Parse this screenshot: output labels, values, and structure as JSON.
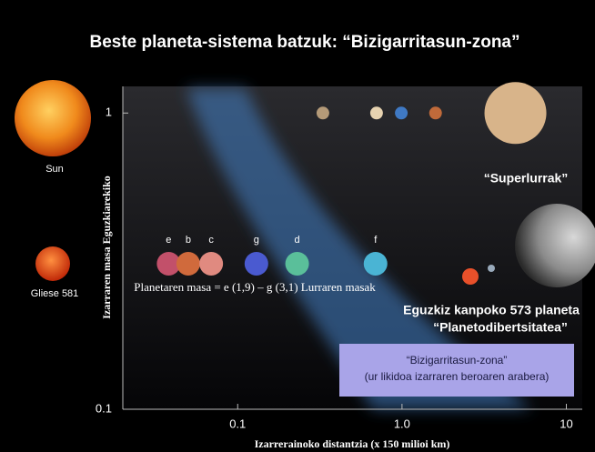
{
  "chart_data": {
    "type": "scatter",
    "title": "Beste planeta-sistema batzuk: “Bizigarritasun-zona”",
    "x_label": "Izarrerainoko distantzia (x 150 milioi km)",
    "y_label": "Izarraren masa Eguzkiarekiko",
    "log_x": true,
    "log_y": true,
    "xlim": [
      0.02,
      12.5
    ],
    "ylim": [
      0.1,
      1.23
    ],
    "xticks": [
      0.1,
      {
        "value": 1,
        "label": "1.0"
      },
      10
    ],
    "yticks": [
      0.1,
      1
    ],
    "stars": [
      "Sun",
      "Gliese 581"
    ],
    "series": [
      {
        "x": [
          0.33,
          0.7,
          0.99,
          1.6,
          4.9
        ],
        "values": [
          1,
          1,
          1,
          1,
          1
        ],
        "colors": [
          "#b49a78",
          "#e6d2b0",
          "#3f79c4",
          "#c06a3a",
          "#d8b48a"
        ]
      },
      {
        "x": [
          0.038,
          0.05,
          0.069,
          0.13,
          0.23,
          0.69
        ],
        "values": [
          0.31,
          0.31,
          0.31,
          0.31,
          0.31,
          0.31
        ],
        "labels": [
          "e",
          "b",
          "c",
          "g",
          "d",
          "f"
        ],
        "colors": [
          "#c2506a",
          "#d06a3c",
          "#e08a80",
          "#4a5ad0",
          "#5abf9a",
          "#4ab4d4"
        ]
      }
    ],
    "annotations": {
      "mass_note": "Planetaren masa = e (1,9) – g (3,1)  Lurraren masak",
      "superearth": "“Superlurrak”",
      "exoplanets": "Eguzkiz kanpoko 573 planeta",
      "diversity": "“Planetodibertsitatea”",
      "zone_title": "“Bizigarritasun-zona”",
      "zone_note": "(ur likidoa izarraren beroaren arabera)"
    }
  }
}
